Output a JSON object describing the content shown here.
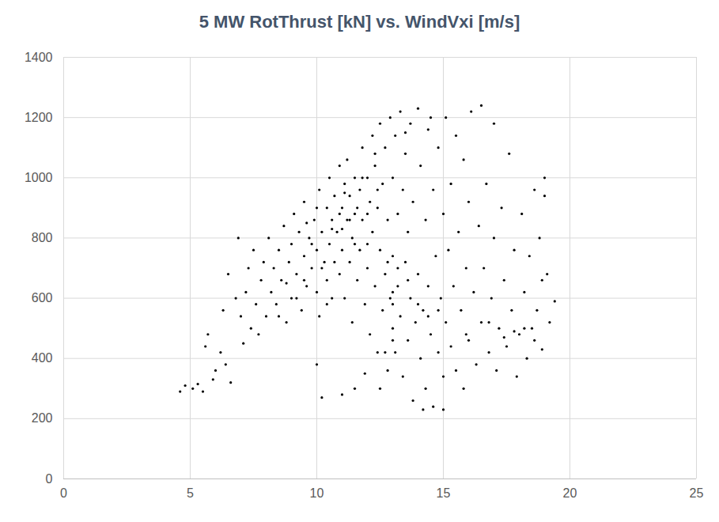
{
  "chart_data": {
    "type": "scatter",
    "title": "5 MW RotThrust [kN] vs. WindVxi [m/s]",
    "x": [
      4.6,
      4.8,
      5.1,
      5.3,
      5.5,
      5.6,
      5.7,
      5.9,
      6.0,
      6.2,
      6.3,
      6.4,
      6.5,
      6.6,
      6.8,
      6.9,
      7.0,
      7.1,
      7.2,
      7.3,
      7.4,
      7.5,
      7.6,
      7.7,
      7.8,
      7.9,
      8.0,
      8.1,
      8.2,
      8.3,
      8.4,
      8.5,
      8.6,
      8.7,
      8.8,
      8.9,
      9.0,
      9.0,
      9.1,
      9.2,
      9.3,
      9.4,
      9.5,
      9.5,
      9.6,
      9.7,
      9.8,
      9.9,
      10.0,
      10.0,
      10.1,
      10.1,
      10.2,
      10.3,
      10.4,
      10.4,
      10.5,
      10.5,
      10.6,
      10.6,
      10.7,
      10.7,
      10.8,
      10.9,
      10.9,
      11.0,
      11.0,
      11.1,
      11.1,
      11.2,
      11.2,
      11.3,
      11.3,
      11.4,
      11.4,
      11.5,
      11.5,
      11.6,
      11.7,
      11.7,
      11.8,
      11.8,
      11.9,
      12.0,
      12.0,
      12.1,
      12.1,
      12.2,
      12.2,
      12.3,
      12.3,
      12.4,
      12.4,
      12.5,
      12.5,
      12.6,
      12.6,
      12.7,
      12.7,
      12.8,
      12.8,
      12.9,
      12.9,
      13.0,
      13.0,
      13.0,
      13.1,
      13.1,
      13.2,
      13.2,
      13.3,
      13.3,
      13.4,
      13.4,
      13.5,
      13.5,
      13.6,
      13.6,
      13.7,
      13.7,
      13.8,
      13.8,
      13.9,
      14.0,
      14.0,
      14.1,
      14.1,
      14.2,
      14.3,
      14.3,
      14.4,
      14.4,
      14.5,
      14.6,
      14.6,
      14.7,
      14.8,
      14.8,
      14.9,
      15.0,
      15.0,
      15.1,
      15.1,
      15.2,
      15.3,
      15.3,
      15.4,
      15.5,
      15.5,
      15.6,
      15.7,
      15.8,
      15.8,
      15.9,
      16.0,
      16.0,
      16.1,
      16.2,
      16.3,
      16.4,
      16.5,
      16.5,
      16.6,
      16.7,
      16.8,
      16.9,
      17.0,
      17.0,
      17.1,
      17.2,
      17.3,
      17.4,
      17.5,
      17.6,
      17.7,
      17.8,
      17.9,
      18.0,
      18.1,
      18.2,
      18.3,
      18.4,
      18.5,
      18.6,
      18.7,
      18.8,
      18.9,
      19.0,
      19.1,
      19.2,
      19.4,
      19.0,
      18.9,
      18.6,
      18.2,
      17.8,
      17.4,
      16.8,
      15.9,
      13.0,
      9.5,
      9.8,
      10.2,
      10.6,
      10.9,
      11.3,
      11.6,
      12.0,
      12.4,
      10.4,
      11.0,
      11.5,
      12.0,
      12.8,
      13.2,
      13.6,
      14.0,
      14.4,
      14.8,
      13.0,
      13.0,
      12.7,
      11.9,
      11.5,
      11.0,
      10.2,
      10.0,
      14.2,
      15.0,
      12.5,
      8.5,
      9.2,
      8.8,
      9.6,
      10.0,
      11.1,
      11.8,
      12.3,
      13.5,
      14.5
    ],
    "values": [
      290,
      310,
      300,
      315,
      290,
      440,
      480,
      330,
      360,
      420,
      560,
      380,
      680,
      320,
      600,
      800,
      540,
      450,
      620,
      700,
      500,
      760,
      580,
      480,
      660,
      720,
      540,
      800,
      620,
      700,
      580,
      760,
      660,
      840,
      520,
      720,
      780,
      600,
      880,
      680,
      820,
      560,
      740,
      920,
      640,
      800,
      700,
      860,
      760,
      620,
      960,
      540,
      820,
      720,
      900,
      660,
      1000,
      780,
      860,
      600,
      940,
      720,
      820,
      1040,
      680,
      900,
      760,
      980,
      600,
      860,
      1060,
      720,
      940,
      800,
      520,
      1000,
      880,
      660,
      960,
      760,
      1100,
      860,
      580,
      1000,
      700,
      920,
      480,
      1140,
      820,
      640,
      1040,
      900,
      420,
      1180,
      760,
      980,
      560,
      1100,
      680,
      860,
      360,
      1200,
      600,
      1000,
      500,
      740,
      1140,
      420,
      880,
      640,
      1220,
      540,
      960,
      340,
      1080,
      720,
      460,
      820,
      1180,
      600,
      260,
      920,
      520,
      1230,
      680,
      400,
      1040,
      560,
      860,
      300,
      1160,
      640,
      480,
      960,
      240,
      740,
      1100,
      420,
      600,
      880,
      340,
      1200,
      520,
      760,
      980,
      440,
      640,
      1140,
      360,
      820,
      560,
      1060,
      300,
      700,
      920,
      460,
      1220,
      620,
      380,
      840,
      1240,
      520,
      700,
      980,
      420,
      600,
      1180,
      800,
      360,
      500,
      900,
      660,
      440,
      1080,
      560,
      760,
      340,
      480,
      880,
      620,
      400,
      740,
      500,
      960,
      560,
      800,
      430,
      1000,
      680,
      520,
      590,
      940,
      660,
      460,
      500,
      490,
      470,
      520,
      480,
      580,
      660,
      780,
      700,
      830,
      880,
      860,
      900,
      880,
      960,
      580,
      830,
      780,
      780,
      720,
      700,
      660,
      580,
      540,
      560,
      620,
      460,
      420,
      350,
      300,
      280,
      270,
      380,
      230,
      230,
      300,
      540,
      600,
      650,
      850,
      900,
      950,
      1000,
      1080,
      1150,
      1200
    ],
    "color": "#000000",
    "marker": "circle",
    "xlim": [
      0,
      25
    ],
    "xticks": [
      0,
      5,
      10,
      15,
      20,
      25
    ],
    "ylim": [
      0,
      1400
    ],
    "yticks": [
      0,
      200,
      400,
      600,
      800,
      1000,
      1200,
      1400
    ],
    "grid": true
  }
}
